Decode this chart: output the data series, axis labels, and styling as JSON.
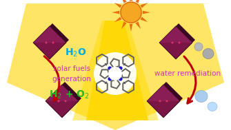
{
  "bg_color": "#ffffff",
  "yellow_outer": "#ffe566",
  "yellow_inner": "#ffd700",
  "yellow_beam": "#ffcc00",
  "sun_body_color": "#f5a623",
  "sun_ray_color": "#e07010",
  "mof_cube_color": "#7a1545",
  "mof_cube_dark": "#4a0825",
  "mof_cube_light": "#9a2565",
  "arrow_color": "#bb0000",
  "h2o_color": "#00aadd",
  "solar_text_color": "#cc33bb",
  "h2_color": "#22bb22",
  "water_rem_color": "#cc33bb",
  "porphyrin_bond_color": "#606060",
  "porphyrin_n_color": "#1a1acc",
  "porphyrin_bg": "#ffffff",
  "h2o_text": "H$_2$O",
  "solar_line1": "solar fuels",
  "solar_line2": "generation",
  "h2_text": "H$_2$ + O$_2$",
  "water_rem_text": "water remediation",
  "figsize": [
    3.35,
    1.89
  ],
  "dpi": 100
}
